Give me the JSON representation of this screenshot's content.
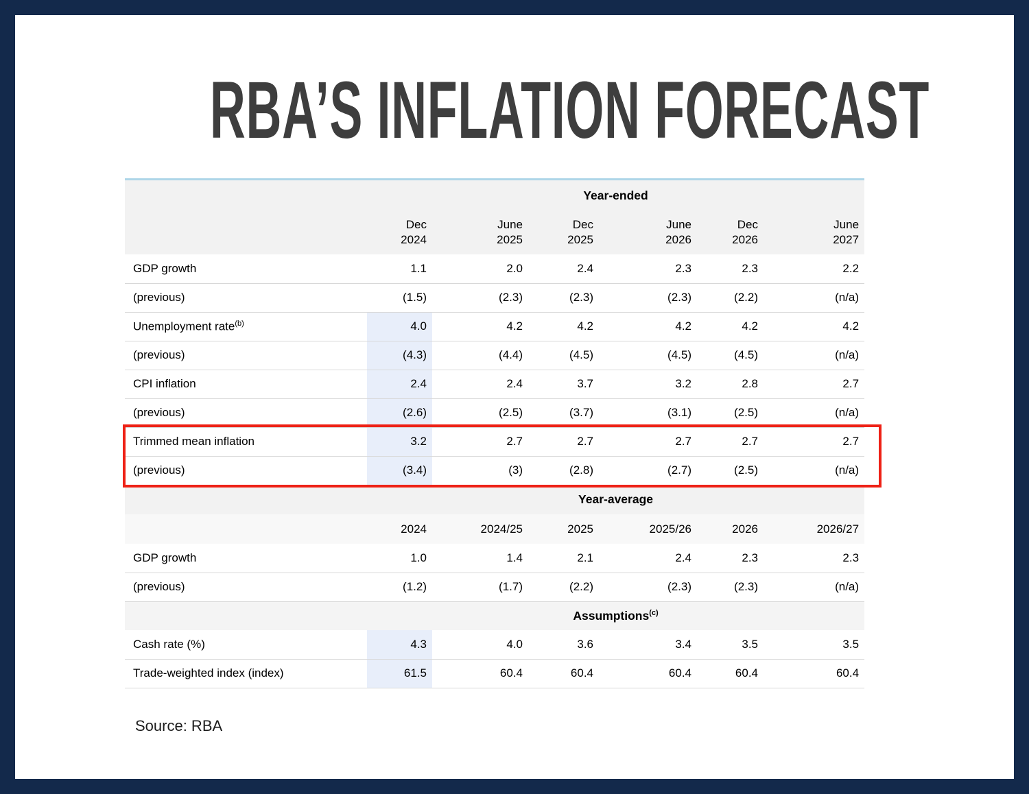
{
  "chart_data": {
    "type": "table",
    "title": "RBA’S INFLATION FORECAST",
    "source": "Source: RBA",
    "sections": [
      {
        "name": "Year-ended",
        "columns": [
          {
            "period": "Dec",
            "year": "2024"
          },
          {
            "period": "June",
            "year": "2025"
          },
          {
            "period": "Dec",
            "year": "2025"
          },
          {
            "period": "June",
            "year": "2026"
          },
          {
            "period": "Dec",
            "year": "2026"
          },
          {
            "period": "June",
            "year": "2027"
          }
        ],
        "rows": [
          {
            "label": "GDP growth",
            "sup": "",
            "values": [
              "1.1",
              "2.0",
              "2.4",
              "2.3",
              "2.3",
              "2.2"
            ]
          },
          {
            "label": "(previous)",
            "sup": "",
            "values": [
              "(1.5)",
              "(2.3)",
              "(2.3)",
              "(2.3)",
              "(2.2)",
              "(n/a)"
            ]
          },
          {
            "label": "Unemployment rate",
            "sup": "(b)",
            "values": [
              "4.0",
              "4.2",
              "4.2",
              "4.2",
              "4.2",
              "4.2"
            ]
          },
          {
            "label": "(previous)",
            "sup": "",
            "values": [
              "(4.3)",
              "(4.4)",
              "(4.5)",
              "(4.5)",
              "(4.5)",
              "(n/a)"
            ]
          },
          {
            "label": "CPI inflation",
            "sup": "",
            "values": [
              "2.4",
              "2.4",
              "3.7",
              "3.2",
              "2.8",
              "2.7"
            ]
          },
          {
            "label": "(previous)",
            "sup": "",
            "values": [
              "(2.6)",
              "(2.5)",
              "(3.7)",
              "(3.1)",
              "(2.5)",
              "(n/a)"
            ]
          },
          {
            "label": "Trimmed mean inflation",
            "sup": "",
            "values": [
              "3.2",
              "2.7",
              "2.7",
              "2.7",
              "2.7",
              "2.7"
            ]
          },
          {
            "label": "(previous)",
            "sup": "",
            "values": [
              "(3.4)",
              "(3)",
              "(2.8)",
              "(2.7)",
              "(2.5)",
              "(n/a)"
            ]
          }
        ]
      },
      {
        "name": "Year-average",
        "columns": [
          "2024",
          "2024/25",
          "2025",
          "2025/26",
          "2026",
          "2026/27"
        ],
        "rows": [
          {
            "label": "GDP growth",
            "sup": "",
            "values": [
              "1.0",
              "1.4",
              "2.1",
              "2.4",
              "2.3",
              "2.3"
            ]
          },
          {
            "label": "(previous)",
            "sup": "",
            "values": [
              "(1.2)",
              "(1.7)",
              "(2.2)",
              "(2.3)",
              "(2.3)",
              "(n/a)"
            ]
          }
        ]
      },
      {
        "name": "Assumptions",
        "name_sup": "(c)",
        "rows": [
          {
            "label": "Cash rate (%)",
            "sup": "",
            "values": [
              "4.3",
              "4.0",
              "3.6",
              "3.4",
              "3.5",
              "3.5"
            ]
          },
          {
            "label": "Trade-weighted index (index)",
            "sup": "",
            "values": [
              "61.5",
              "60.4",
              "60.4",
              "60.4",
              "60.4",
              "60.4"
            ]
          }
        ]
      }
    ],
    "highlight": {
      "rows": [
        "Trimmed mean inflation",
        "(previous)"
      ],
      "color": "#ee2116"
    }
  },
  "colors": {
    "frame": "#13294b",
    "title_text": "#3e3e3e",
    "section_header_bg": "#f2f2f2",
    "shaded_column_bg": "#e8eefa",
    "highlight_border": "#ee2116",
    "table_top_border": "#aed6e8"
  }
}
